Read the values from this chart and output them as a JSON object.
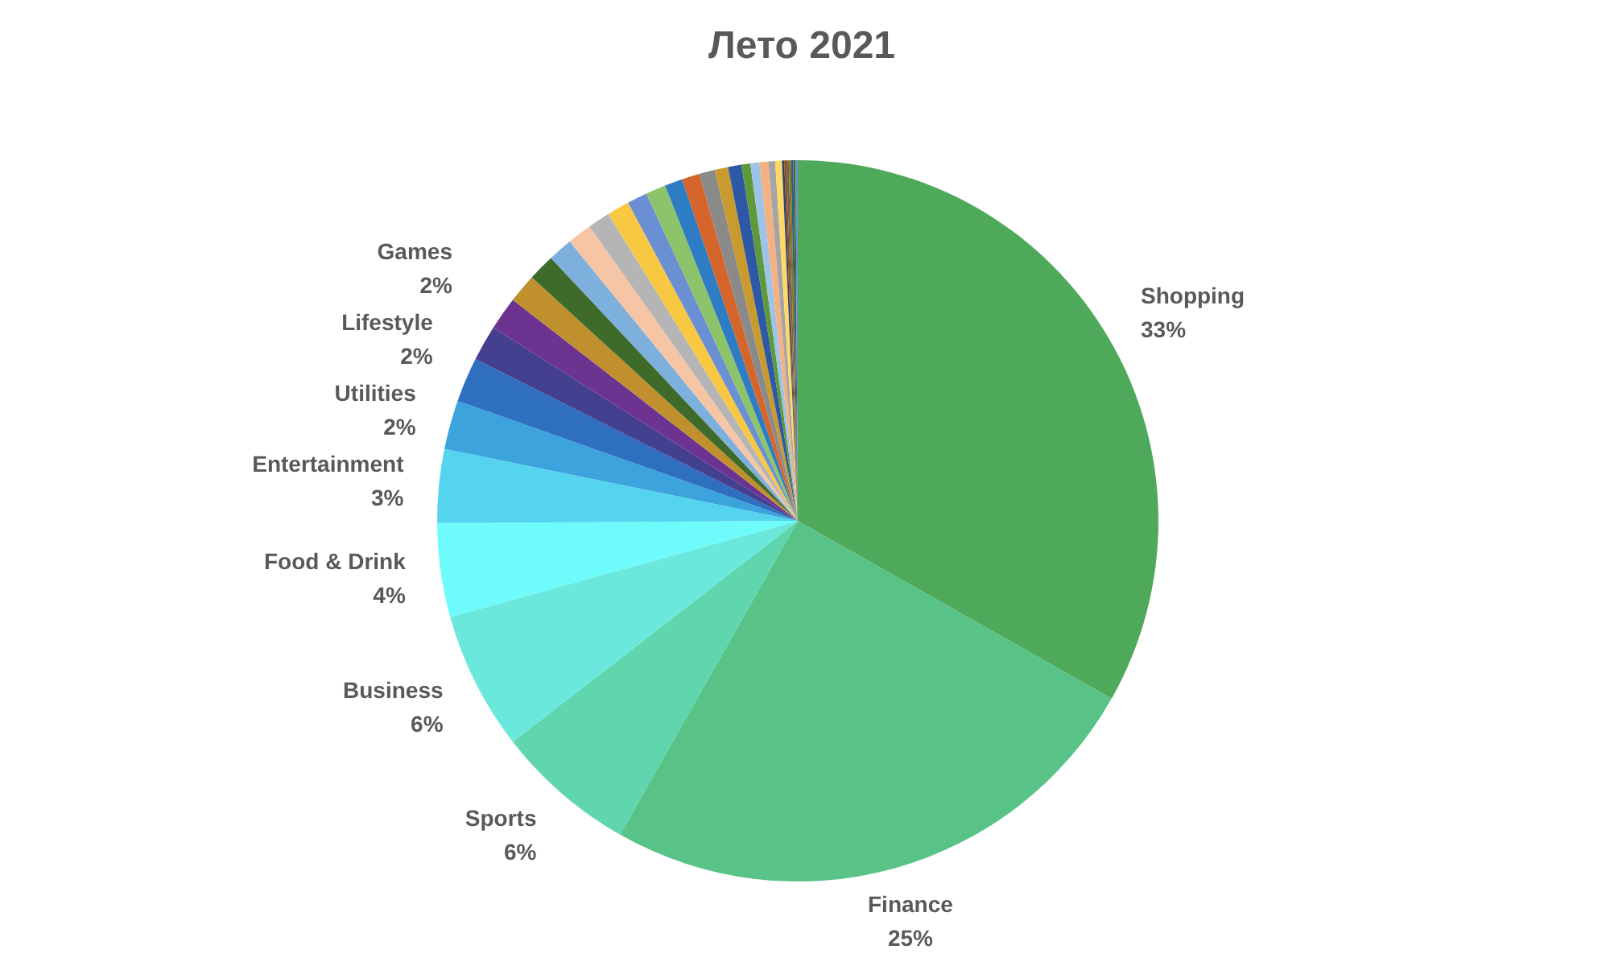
{
  "chart_data": {
    "type": "pie",
    "title": "Лето 2021",
    "categories": [
      "Shopping",
      "Finance",
      "Sports",
      "Business",
      "Food & Drink",
      "Entertainment",
      "Utilities",
      "Lifestyle",
      "Games",
      null,
      null,
      null,
      null,
      null,
      null,
      null,
      null,
      null,
      null,
      null,
      null,
      null,
      null,
      null,
      null,
      null,
      null,
      null,
      null,
      null,
      null,
      null,
      null,
      null,
      null
    ],
    "values": [
      33.2,
      25.0,
      6.3,
      6.2,
      4.2,
      3.3,
      2.2,
      2.0,
      1.6,
      1.5,
      1.3,
      1.2,
      1.1,
      1.1,
      1.0,
      1.0,
      0.9,
      0.9,
      0.8,
      0.8,
      0.7,
      0.6,
      0.6,
      0.4,
      0.4,
      0.4,
      0.3,
      0.3,
      0.1,
      0.1,
      0.1,
      0.1,
      0.1,
      0.1,
      0.1
    ],
    "value_labels": [
      "33%",
      "25%",
      "6%",
      "6%",
      "4%",
      "3%",
      "2%",
      "2%",
      "2%",
      null,
      null,
      null,
      null,
      null,
      null,
      null,
      null,
      null,
      null,
      null,
      null,
      null,
      null,
      null,
      null,
      null,
      null,
      null,
      null,
      null,
      null,
      null,
      null,
      null,
      null
    ],
    "colors": [
      "#4ea95a",
      "#58c287",
      "#5fd6ae",
      "#6be8dc",
      "#6efbfb",
      "#55d4f0",
      "#3ca3dc",
      "#2e6fc0",
      "#443f8f",
      "#6c3490",
      "#c0902f",
      "#3e6b2a",
      "#7eb0de",
      "#f5c5a5",
      "#b5b5b5",
      "#f9c843",
      "#6a8fd2",
      "#8dc36a",
      "#2e7cc4",
      "#d5652a",
      "#8a8a8a",
      "#c99a2e",
      "#2d58a5",
      "#5e9a3b",
      "#9dc3e6",
      "#f4b183",
      "#a5a5a5",
      "#ffd966",
      "#264478",
      "#9e480e",
      "#636363",
      "#997300",
      "#255e91",
      "#43682b",
      "#698ed0"
    ]
  }
}
